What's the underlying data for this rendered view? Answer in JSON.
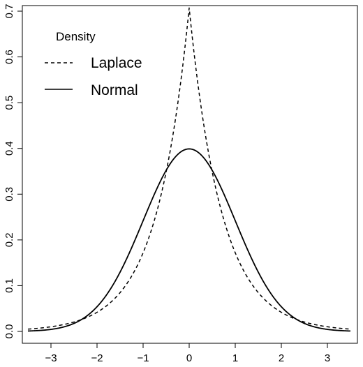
{
  "chart_data": {
    "type": "line",
    "title": "",
    "xlabel": "",
    "ylabel": "",
    "xlim": [
      -3.5,
      3.5
    ],
    "ylim": [
      0,
      0.7
    ],
    "x_ticks": [
      -3,
      -2,
      -1,
      0,
      1,
      2,
      3
    ],
    "x_tick_labels": [
      "−3",
      "−2",
      "−1",
      "0",
      "1",
      "2",
      "3"
    ],
    "y_ticks": [
      0,
      0.1,
      0.2,
      0.3,
      0.4,
      0.5,
      0.6,
      0.7
    ],
    "y_tick_labels": [
      "0.0",
      "0.1",
      "0.2",
      "0.3",
      "0.4",
      "0.5",
      "0.6",
      "0.7"
    ],
    "grid": false,
    "legend": {
      "title": "Density",
      "placement": "top-left",
      "entries": [
        {
          "name": "Laplace",
          "style": "dashed"
        },
        {
          "name": "Normal",
          "style": "solid"
        }
      ]
    },
    "series": [
      {
        "name": "Laplace",
        "style": "dashed",
        "color": "#000000",
        "x": [
          -3.5,
          -3.0,
          -2.5,
          -2.0,
          -1.5,
          -1.0,
          -0.75,
          -0.5,
          -0.25,
          0.0,
          0.25,
          0.5,
          0.75,
          1.0,
          1.5,
          2.0,
          2.5,
          3.0,
          3.5
        ],
        "y": [
          0.005,
          0.01,
          0.021,
          0.042,
          0.085,
          0.172,
          0.245,
          0.348,
          0.496,
          0.707,
          0.496,
          0.348,
          0.245,
          0.172,
          0.085,
          0.042,
          0.021,
          0.01,
          0.005
        ]
      },
      {
        "name": "Normal",
        "style": "solid",
        "color": "#000000",
        "x": [
          -3.5,
          -3.0,
          -2.5,
          -2.0,
          -1.5,
          -1.0,
          -0.75,
          -0.5,
          -0.25,
          0.0,
          0.25,
          0.5,
          0.75,
          1.0,
          1.5,
          2.0,
          2.5,
          3.0,
          3.5
        ],
        "y": [
          0.001,
          0.004,
          0.018,
          0.054,
          0.13,
          0.242,
          0.301,
          0.352,
          0.387,
          0.399,
          0.387,
          0.352,
          0.301,
          0.242,
          0.13,
          0.054,
          0.018,
          0.004,
          0.001
        ]
      }
    ]
  }
}
